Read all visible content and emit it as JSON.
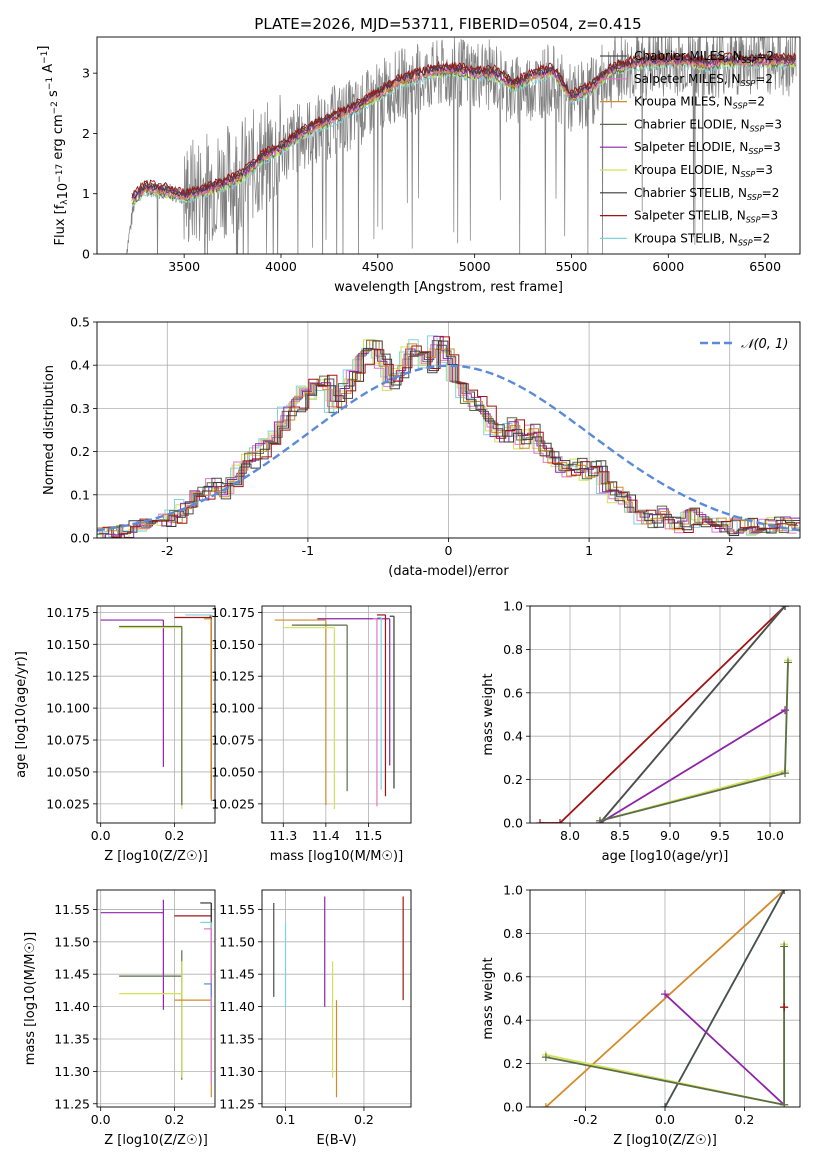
{
  "figure": {
    "title": "PLATE=2026, MJD=53711, FIBERID=0504, z=0.415"
  },
  "palette": {
    "chabrier_miles": "#4d4d4d",
    "salpeter_miles": "#e377c2",
    "kroupa_miles": "#d48a2a",
    "chabrier_elodie": "#5a6e4a",
    "salpeter_elodie": "#8e24aa",
    "kroupa_elodie": "#d4e157",
    "chabrier_stelib": "#3a3a3a",
    "salpeter_stelib": "#a01414",
    "kroupa_stelib": "#7fd3e0",
    "data_gray": "#808080",
    "normal_curve": "#5b8bd8"
  },
  "chart_data": [
    {
      "id": "spectrum",
      "type": "line",
      "title": "PLATE=2026, MJD=53711, FIBERID=0504, z=0.415",
      "xlabel": "wavelength [Angstrom, rest frame]",
      "ylabel": "Flux [f_λ 10^{-17} erg cm^{-2} s^{-1} A^{-1}]",
      "xlim": [
        3050,
        6680
      ],
      "ylim": [
        0,
        3.6
      ],
      "xticks": [
        3500,
        4000,
        4500,
        5000,
        5500,
        6000,
        6500
      ],
      "yticks": [
        0,
        1,
        2,
        3
      ],
      "grid": false,
      "legend_position": "top-right",
      "legend": [
        "Chabrier MILES, N_SSP=2",
        "Salpeter MILES, N_SSP=2",
        "Kroupa MILES, N_SSP=2",
        "Chabrier ELODIE, N_SSP=3",
        "Salpeter ELODIE, N_SSP=3",
        "Kroupa ELODIE, N_SSP=3",
        "Chabrier STELIB, N_SSP=2",
        "Salpeter STELIB, N_SSP=3",
        "Kroupa STELIB, N_SSP=2"
      ],
      "data_trend": {
        "x": [
          3200,
          3250,
          3300,
          3400,
          3500,
          3600,
          3700,
          3800,
          3900,
          4000,
          4100,
          4200,
          4300,
          4400,
          4500,
          4600,
          4700,
          4800,
          4900,
          5000,
          5100,
          5200,
          5300,
          5400,
          5500,
          5600,
          5700,
          5800,
          5900,
          6000,
          6100,
          6200,
          6300,
          6400,
          6500,
          6600
        ],
        "y": [
          0.0,
          1.0,
          1.1,
          1.05,
          0.95,
          1.1,
          1.2,
          1.35,
          1.55,
          1.75,
          1.95,
          2.1,
          2.25,
          2.35,
          2.6,
          2.8,
          2.9,
          2.95,
          3.0,
          3.0,
          2.95,
          2.7,
          2.8,
          2.9,
          2.55,
          2.7,
          3.0,
          3.1,
          3.15,
          3.2,
          3.2,
          3.15,
          3.2,
          3.2,
          3.25,
          3.2
        ]
      },
      "model_trend": {
        "x": [
          3200,
          3250,
          3300,
          3400,
          3500,
          3600,
          3700,
          3800,
          3900,
          4000,
          4100,
          4200,
          4300,
          4400,
          4500,
          4600,
          4700,
          4800,
          4900,
          5000,
          5100,
          5200,
          5300,
          5400,
          5500,
          5600,
          5700,
          5800,
          5900,
          6000,
          6100,
          6200,
          6300,
          6400,
          6500,
          6600
        ],
        "y": [
          0.85,
          0.95,
          1.1,
          1.05,
          0.95,
          1.05,
          1.15,
          1.3,
          1.6,
          1.75,
          2.0,
          2.15,
          2.3,
          2.45,
          2.65,
          2.85,
          2.95,
          3.05,
          3.05,
          3.0,
          3.0,
          2.8,
          2.95,
          3.05,
          2.6,
          2.75,
          3.05,
          3.15,
          3.2,
          3.2,
          3.2,
          3.15,
          3.2,
          3.2,
          3.2,
          3.2
        ]
      }
    },
    {
      "id": "residuals",
      "type": "histogram",
      "xlabel": "(data-model)/error",
      "ylabel": "Normed distribution",
      "xlim": [
        -2.5,
        2.5
      ],
      "ylim": [
        0,
        0.5
      ],
      "xticks": [
        -2,
        -1,
        0,
        1,
        2
      ],
      "yticks": [
        0.0,
        0.1,
        0.2,
        0.3,
        0.4,
        0.5
      ],
      "grid": true,
      "legend_position": "top-right",
      "legend": [
        "𝒩(0, 1)"
      ],
      "bins": {
        "start": -2.5,
        "width": 0.1,
        "profile": [
          0.01,
          0.01,
          0.015,
          0.02,
          0.03,
          0.035,
          0.03,
          0.04,
          0.05,
          0.07,
          0.09,
          0.1,
          0.12,
          0.11,
          0.12,
          0.16,
          0.18,
          0.2,
          0.22,
          0.25,
          0.29,
          0.31,
          0.35,
          0.34,
          0.36,
          0.31,
          0.34,
          0.37,
          0.42,
          0.44,
          0.41,
          0.36,
          0.38,
          0.43,
          0.44,
          0.4,
          0.45,
          0.42,
          0.37,
          0.33,
          0.31,
          0.29,
          0.25,
          0.24,
          0.26,
          0.22,
          0.25,
          0.21,
          0.19,
          0.17,
          0.16,
          0.17,
          0.15,
          0.16,
          0.12,
          0.1,
          0.09,
          0.07,
          0.05,
          0.04,
          0.06,
          0.04,
          0.03,
          0.05,
          0.04,
          0.03,
          0.03,
          0.025,
          0.03,
          0.03,
          0.025,
          0.03,
          0.03,
          0.03,
          0.03
        ]
      }
    },
    {
      "id": "age_vs_Z",
      "type": "scatter",
      "xlabel": "Z [log10(Z/Z☉)]",
      "ylabel": "age  [log10(age/yr)]",
      "xlim": [
        -0.01,
        0.31
      ],
      "ylim": [
        10.01,
        10.18
      ],
      "xticks": [
        0.0,
        0.2
      ],
      "yticks": [
        10.025,
        10.05,
        10.075,
        10.1,
        10.125,
        10.15,
        10.175
      ],
      "grid": true,
      "points": [
        {
          "model": "chabrier_miles",
          "x": 0.3,
          "y": 10.172,
          "xerr": 0.005,
          "yerr_lo": 0.14
        },
        {
          "model": "salpeter_elodie",
          "x": 0.17,
          "y": 10.169,
          "xerr_lo": 0.17,
          "yerr_lo": 0.115
        },
        {
          "model": "kroupa_elodie",
          "x": 0.22,
          "y": 10.163,
          "xerr_lo": 0.17,
          "yerr_lo": 0.142
        },
        {
          "model": "chabrier_elodie",
          "x": 0.22,
          "y": 10.164,
          "xerr_lo": 0.17,
          "yerr_lo": 0.14
        },
        {
          "model": "kroupa_stelib",
          "x": 0.3,
          "y": 10.173,
          "xerr_lo": 0.07,
          "yerr_lo": 0.145
        },
        {
          "model": "salpeter_stelib",
          "x": 0.3,
          "y": 10.171,
          "xerr_lo": 0.1,
          "yerr_lo": 0.142
        },
        {
          "model": "kroupa_miles",
          "x": 0.3,
          "y": 10.17,
          "xerr_lo": 0.02,
          "yerr_lo": 0.143
        }
      ]
    },
    {
      "id": "age_vs_mass",
      "type": "scatter",
      "xlabel": "mass [log10(M/M☉)]",
      "ylabel": "",
      "xlim": [
        11.25,
        11.6
      ],
      "ylim": [
        10.01,
        10.18
      ],
      "xticks": [
        11.3,
        11.4,
        11.5
      ],
      "yticks": [
        10.025,
        10.05,
        10.075,
        10.1,
        10.125,
        10.15,
        10.175
      ],
      "grid": true,
      "points": [
        {
          "model": "kroupa_miles",
          "x": 11.4,
          "y": 10.169,
          "xerr_lo": 0.12,
          "yerr_lo": 0.145
        },
        {
          "model": "salpeter_elodie",
          "x": 11.55,
          "y": 10.17,
          "xerr_lo": 0.17,
          "yerr_lo": 0.115
        },
        {
          "model": "kroupa_elodie",
          "x": 11.42,
          "y": 10.163,
          "xerr_lo": 0.12,
          "yerr_lo": 0.142
        },
        {
          "model": "chabrier_elodie",
          "x": 11.45,
          "y": 10.165,
          "xerr_lo": 0.13,
          "yerr_lo": 0.13
        },
        {
          "model": "salpeter_stelib",
          "x": 11.54,
          "y": 10.173,
          "xerr_lo": 0.02,
          "yerr_lo": 0.142
        },
        {
          "model": "chabrier_stelib",
          "x": 11.56,
          "y": 10.172,
          "xerr_lo": 0.01,
          "yerr_lo": 0.135
        },
        {
          "model": "salpeter_miles",
          "x": 11.52,
          "y": 10.17,
          "xerr_lo": 0.01,
          "yerr_lo": 0.147
        },
        {
          "model": "kroupa_stelib",
          "x": 11.53,
          "y": 10.171,
          "xerr_lo": 0.01,
          "yerr_lo": 0.135
        }
      ]
    },
    {
      "id": "weight_vs_age",
      "type": "line",
      "xlabel": "age  [log10(age/yr)]",
      "ylabel": "mass weight",
      "xlim": [
        7.6,
        10.3
      ],
      "ylim": [
        0.0,
        1.0
      ],
      "xticks": [
        8.0,
        8.5,
        9.0,
        9.5,
        10.0
      ],
      "yticks": [
        0.0,
        0.2,
        0.4,
        0.6,
        0.8,
        1.0
      ],
      "grid": true,
      "series": [
        {
          "model": "salpeter_stelib",
          "x": [
            7.7,
            7.9,
            10.15
          ],
          "y": [
            0.0,
            0.0,
            1.0
          ]
        },
        {
          "model": "kroupa_miles",
          "x": [
            8.3,
            10.15
          ],
          "y": [
            0.0,
            1.0
          ]
        },
        {
          "model": "kroupa_stelib",
          "x": [
            8.3,
            10.15
          ],
          "y": [
            0.0,
            1.0
          ]
        },
        {
          "model": "chabrier_miles",
          "x": [
            8.3,
            10.15
          ],
          "y": [
            0.0,
            1.0
          ]
        },
        {
          "model": "kroupa_elodie",
          "x": [
            8.3,
            10.15,
            10.18
          ],
          "y": [
            0.01,
            0.24,
            0.75
          ]
        },
        {
          "model": "salpeter_elodie",
          "x": [
            8.3,
            10.15
          ],
          "y": [
            0.0,
            0.52
          ]
        },
        {
          "model": "chabrier_elodie",
          "x": [
            8.3,
            10.15,
            10.18
          ],
          "y": [
            0.01,
            0.23,
            0.74
          ]
        }
      ]
    },
    {
      "id": "mass_vs_Z",
      "type": "scatter",
      "xlabel": "Z [log10(Z/Z☉)]",
      "ylabel": "mass [log10(M/M☉)]",
      "xlim": [
        -0.01,
        0.31
      ],
      "ylim": [
        11.245,
        11.58
      ],
      "xticks": [
        0.0,
        0.2
      ],
      "yticks": [
        11.25,
        11.3,
        11.35,
        11.4,
        11.45,
        11.5,
        11.55
      ],
      "grid": true,
      "points": [
        {
          "model": "salpeter_elodie",
          "x": 0.17,
          "y": 11.545,
          "xerr_lo": 0.17,
          "yerr_lo": 0.15,
          "yerr_hi": 0.02
        },
        {
          "model": "chabrier_elodie",
          "x": 0.22,
          "y": 11.447,
          "xerr_lo": 0.17,
          "yerr_lo": 0.16,
          "yerr_hi": 0.04
        },
        {
          "model": "kroupa_elodie",
          "x": 0.22,
          "y": 11.42,
          "xerr_lo": 0.17,
          "yerr_lo": 0.13,
          "yerr_hi": 0.05
        },
        {
          "model": "salpeter_stelib",
          "x": 0.3,
          "y": 11.54,
          "xerr_lo": 0.1,
          "yerr_lo": 0.24,
          "yerr_hi": 0.02
        },
        {
          "model": "chabrier_stelib",
          "x": 0.3,
          "y": 11.56,
          "xerr_lo": 0.03,
          "yerr_lo": 0.27
        },
        {
          "model": "kroupa_miles",
          "x": 0.3,
          "y": 11.41,
          "xerr_lo": 0.1,
          "yerr_lo": 0.15
        },
        {
          "model": "kroupa_stelib",
          "x": 0.3,
          "y": 11.53,
          "xerr_lo": 0.03,
          "yerr_lo": 0.25
        },
        {
          "model": "salpeter_miles",
          "x": 0.3,
          "y": 11.52,
          "xerr_lo": 0.02,
          "yerr_lo": 0.24
        },
        {
          "model": "normal_curve",
          "x": 0.3,
          "y": 11.435,
          "xerr_lo": 0.02,
          "yerr_lo": 0.02
        }
      ]
    },
    {
      "id": "mass_vs_ebv",
      "type": "scatter",
      "xlabel": "E(B-V)",
      "ylabel": "",
      "xlim": [
        0.07,
        0.26
      ],
      "ylim": [
        11.245,
        11.58
      ],
      "xticks": [
        0.1,
        0.2
      ],
      "yticks": [
        11.25,
        11.3,
        11.35,
        11.4,
        11.45,
        11.5,
        11.55
      ],
      "grid": true,
      "points": [
        {
          "model": "chabrier_miles",
          "x": 0.085,
          "y": 11.49,
          "yerr_lo": 0.075,
          "yerr_hi": 0.07
        },
        {
          "model": "kroupa_stelib",
          "x": 0.1,
          "y": 11.47,
          "yerr_lo": 0.07,
          "yerr_hi": 0.06
        },
        {
          "model": "salpeter_elodie",
          "x": 0.15,
          "y": 11.48,
          "yerr_lo": 0.08,
          "yerr_hi": 0.09
        },
        {
          "model": "kroupa_elodie",
          "x": 0.16,
          "y": 11.38,
          "yerr_lo": 0.09,
          "yerr_hi": 0.09
        },
        {
          "model": "kroupa_miles",
          "x": 0.165,
          "y": 11.33,
          "yerr_lo": 0.07,
          "yerr_hi": 0.08
        },
        {
          "model": "salpeter_stelib",
          "x": 0.25,
          "y": 11.49,
          "yerr_lo": 0.08,
          "yerr_hi": 0.08
        }
      ]
    },
    {
      "id": "weight_vs_Z",
      "type": "line",
      "xlabel": "Z [log10(Z/Z☉)]",
      "ylabel": "mass weight",
      "xlim": [
        -0.34,
        0.34
      ],
      "ylim": [
        0.0,
        1.0
      ],
      "xticks": [
        -0.2,
        0.0,
        0.2
      ],
      "yticks": [
        0.0,
        0.2,
        0.4,
        0.6,
        0.8,
        1.0
      ],
      "grid": true,
      "series": [
        {
          "model": "kroupa_miles",
          "x": [
            -0.3,
            0.3
          ],
          "y": [
            0.0,
            1.0
          ]
        },
        {
          "model": "kroupa_stelib",
          "x": [
            0.0,
            0.3
          ],
          "y": [
            0.0,
            1.0
          ]
        },
        {
          "model": "chabrier_miles",
          "x": [
            0.0,
            0.3
          ],
          "y": [
            0.0,
            1.0
          ]
        },
        {
          "model": "salpeter_elodie",
          "x": [
            0.0,
            0.3
          ],
          "y": [
            0.52,
            0.01
          ]
        },
        {
          "model": "kroupa_elodie",
          "x": [
            -0.3,
            0.3,
            0.3
          ],
          "y": [
            0.24,
            0.01,
            0.75
          ]
        },
        {
          "model": "chabrier_elodie",
          "x": [
            -0.3,
            0.3,
            0.3
          ],
          "y": [
            0.23,
            0.01,
            0.74
          ]
        },
        {
          "model": "salpeter_stelib",
          "x": [
            0.3,
            0.3
          ],
          "y": [
            0.46,
            0.46
          ]
        }
      ]
    }
  ]
}
